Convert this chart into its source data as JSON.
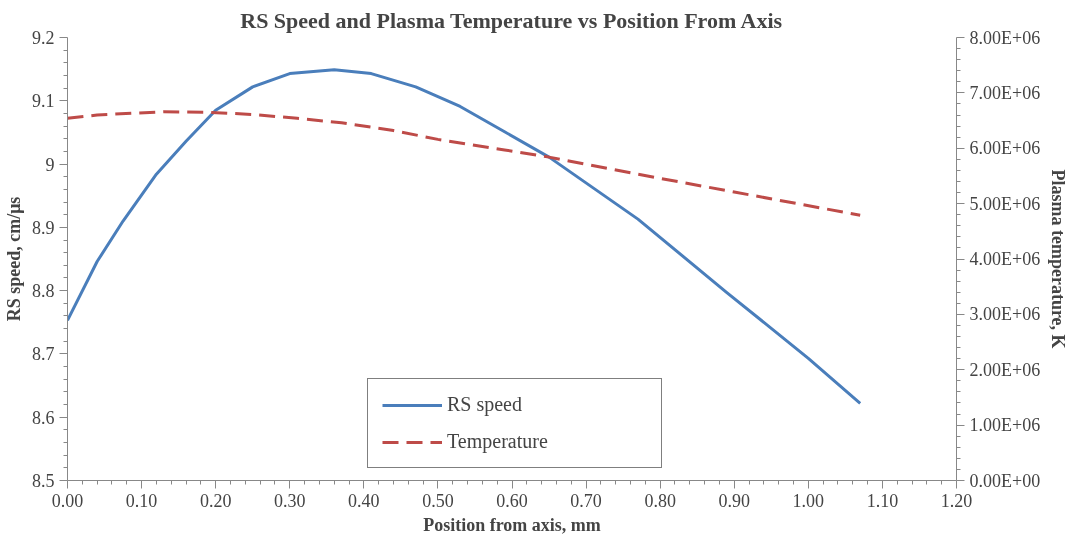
{
  "chart_data": {
    "type": "line",
    "title": "RS Speed and Plasma Temperature vs Position From Axis",
    "xlabel": "Position from axis, mm",
    "ylabel": "RS speed, cm/μs",
    "y2label": "Plasma temperature, K",
    "series": [
      {
        "name": "RS speed",
        "color": "#4a7ebb",
        "line_style": "solid",
        "x": [
          0,
          0.04,
          0.075,
          0.12,
          0.16,
          0.2,
          0.25,
          0.3,
          0.36,
          0.41,
          0.47,
          0.53,
          0.59,
          0.65,
          0.77,
          0.89,
          1.0,
          1.07
        ],
        "values": [
          8.753,
          8.846,
          8.91,
          8.984,
          9.036,
          9.085,
          9.122,
          9.143,
          9.149,
          9.143,
          9.122,
          9.091,
          9.051,
          9.011,
          8.913,
          8.797,
          8.693,
          8.622
        ]
      },
      {
        "name": "Temperature",
        "color": "#be4b48",
        "line_style": "dashed",
        "axis": "y2",
        "x": [
          0,
          0.04,
          0.13,
          0.19,
          0.25,
          0.31,
          0.37,
          0.44,
          0.5,
          0.59,
          0.65,
          0.77,
          0.9,
          1.07
        ],
        "values": [
          6540000,
          6600000,
          6660000,
          6650000,
          6610000,
          6540000,
          6460000,
          6320000,
          6160000,
          5970000,
          5840000,
          5530000,
          5210000,
          4790000
        ]
      }
    ],
    "xlim": [
      0,
      1.2
    ],
    "xticks": [
      {
        "value": 0,
        "label": "0.00"
      },
      {
        "value": 0.1,
        "label": "0.10"
      },
      {
        "value": 0.2,
        "label": "0.20"
      },
      {
        "value": 0.3,
        "label": "0.30"
      },
      {
        "value": 0.4,
        "label": "0.40"
      },
      {
        "value": 0.5,
        "label": "0.50"
      },
      {
        "value": 0.6,
        "label": "0.60"
      },
      {
        "value": 0.7,
        "label": "0.70"
      },
      {
        "value": 0.8,
        "label": "0.80"
      },
      {
        "value": 0.9,
        "label": "0.90"
      },
      {
        "value": 1.0,
        "label": "1.00"
      },
      {
        "value": 1.1,
        "label": "1.10"
      },
      {
        "value": 1.2,
        "label": "1.20"
      }
    ],
    "ylim": [
      8.5,
      9.2
    ],
    "yticks": [
      8.5,
      8.6,
      8.7,
      8.8,
      8.9,
      9,
      9.1,
      9.2
    ],
    "y2lim": [
      0,
      8000000
    ],
    "y2ticks": [
      {
        "value": 0,
        "label": "0.00E+00"
      },
      {
        "value": 1000000,
        "label": "1.00E+06"
      },
      {
        "value": 2000000,
        "label": "2.00E+06"
      },
      {
        "value": 3000000,
        "label": "3.00E+06"
      },
      {
        "value": 4000000,
        "label": "4.00E+06"
      },
      {
        "value": 5000000,
        "label": "5.00E+06"
      },
      {
        "value": 6000000,
        "label": "6.00E+06"
      },
      {
        "value": 7000000,
        "label": "7.00E+06"
      },
      {
        "value": 8000000,
        "label": "8.00E+06"
      }
    ],
    "legend": "bottom",
    "grid": false
  }
}
